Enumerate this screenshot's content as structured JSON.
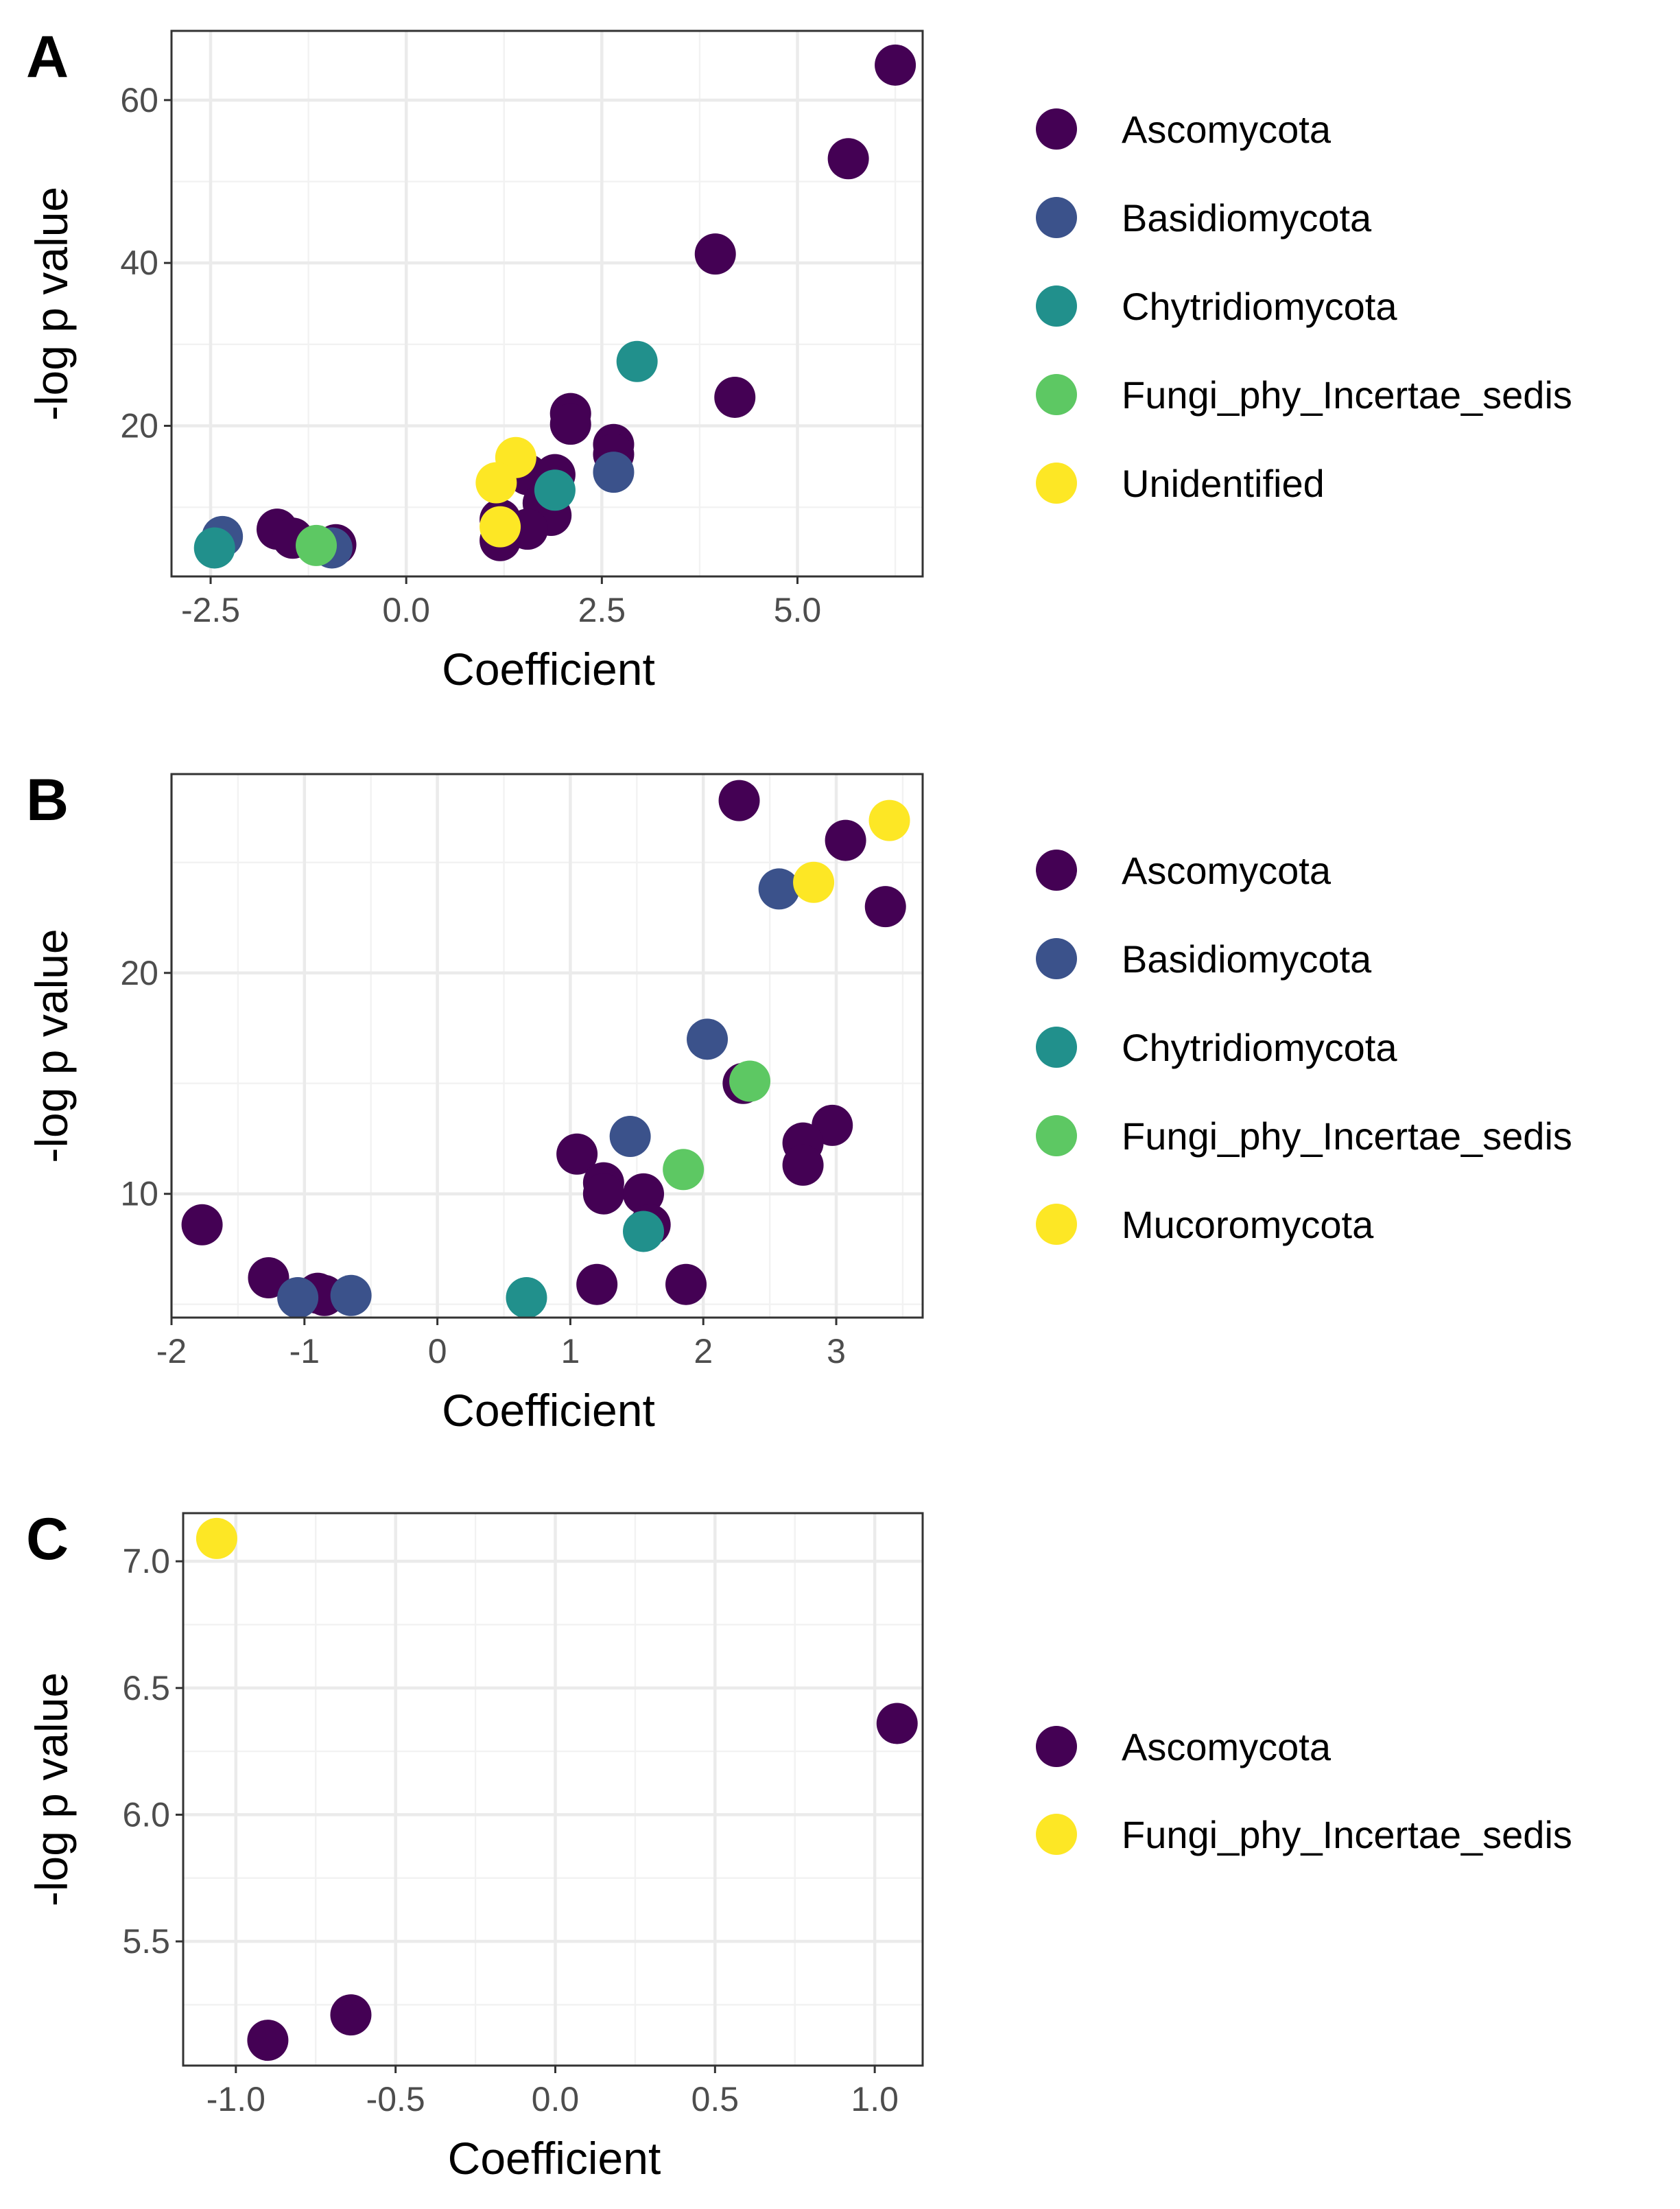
{
  "colors": {
    "Ascomycota": "#440154",
    "Basidiomycota": "#3b528b",
    "Chytridiomycota": "#21908c",
    "Fungi_phy_Incertae_sedis": "#5dc863",
    "Unidentified": "#fde725",
    "Mucoromycota": "#fde725",
    "C_Ascomycota": "#440154",
    "C_Fungi_phy_Incertae_sedis": "#fde725"
  },
  "chart_data": [
    {
      "panel": "A",
      "type": "scatter",
      "xlabel": "Coefficient",
      "ylabel": "-log p value",
      "xlim": [
        -3.0,
        6.6
      ],
      "ylim": [
        1.5,
        68.5
      ],
      "xticks": [
        -2.5,
        0.0,
        2.5,
        5.0
      ],
      "xtick_labels": [
        "-2.5",
        "0.0",
        "2.5",
        "5.0"
      ],
      "yticks": [
        20,
        40,
        60
      ],
      "ytick_labels": [
        "20",
        "40",
        "60"
      ],
      "legend": [
        "Ascomycota",
        "Basidiomycota",
        "Chytridiomycota",
        "Fungi_phy_Incertae_sedis",
        "Unidentified"
      ],
      "legend_color_keys": [
        "Ascomycota",
        "Basidiomycota",
        "Chytridiomycota",
        "Fungi_phy_Incertae_sedis",
        "Unidentified"
      ],
      "points": [
        {
          "x": 6.25,
          "y": 64.3,
          "group": "Ascomycota"
        },
        {
          "x": 5.65,
          "y": 52.8,
          "group": "Ascomycota"
        },
        {
          "x": 3.95,
          "y": 41.1,
          "group": "Ascomycota"
        },
        {
          "x": 4.2,
          "y": 23.5,
          "group": "Ascomycota"
        },
        {
          "x": 2.1,
          "y": 21.5,
          "group": "Ascomycota"
        },
        {
          "x": 2.1,
          "y": 20.2,
          "group": "Ascomycota"
        },
        {
          "x": 2.65,
          "y": 17.7,
          "group": "Ascomycota"
        },
        {
          "x": 2.65,
          "y": 16.5,
          "group": "Ascomycota"
        },
        {
          "x": 1.4,
          "y": 14.8,
          "group": "Ascomycota"
        },
        {
          "x": 1.55,
          "y": 14.0,
          "group": "Ascomycota"
        },
        {
          "x": 1.9,
          "y": 14.0,
          "group": "Ascomycota"
        },
        {
          "x": 1.75,
          "y": 10.5,
          "group": "Ascomycota"
        },
        {
          "x": 1.85,
          "y": 9.0,
          "group": "Ascomycota"
        },
        {
          "x": 1.55,
          "y": 7.3,
          "group": "Ascomycota"
        },
        {
          "x": 1.2,
          "y": 8.5,
          "group": "Ascomycota"
        },
        {
          "x": 1.2,
          "y": 5.9,
          "group": "Ascomycota"
        },
        {
          "x": -1.65,
          "y": 7.3,
          "group": "Ascomycota"
        },
        {
          "x": -1.45,
          "y": 6.2,
          "group": "Ascomycota"
        },
        {
          "x": -0.9,
          "y": 5.4,
          "group": "Ascomycota"
        },
        {
          "x": -2.35,
          "y": 6.4,
          "group": "Basidiomycota"
        },
        {
          "x": 2.65,
          "y": 14.3,
          "group": "Basidiomycota"
        },
        {
          "x": -0.95,
          "y": 5.0,
          "group": "Basidiomycota"
        },
        {
          "x": 2.95,
          "y": 27.9,
          "group": "Chytridiomycota"
        },
        {
          "x": -2.45,
          "y": 5.0,
          "group": "Chytridiomycota"
        },
        {
          "x": 1.9,
          "y": 12.1,
          "group": "Chytridiomycota"
        },
        {
          "x": -1.15,
          "y": 5.3,
          "group": "Fungi_phy_Incertae_sedis"
        },
        {
          "x": 1.4,
          "y": 16.1,
          "group": "Unidentified"
        },
        {
          "x": 1.15,
          "y": 13.0,
          "group": "Unidentified"
        },
        {
          "x": 1.2,
          "y": 7.6,
          "group": "Unidentified"
        }
      ]
    },
    {
      "panel": "B",
      "type": "scatter",
      "xlabel": "Coefficient",
      "ylabel": "-log p value",
      "xlim": [
        -2.0,
        3.65
      ],
      "ylim": [
        4.4,
        29.0
      ],
      "xticks": [
        -2,
        -1,
        0,
        1,
        2,
        3
      ],
      "xtick_labels": [
        "-2",
        "-1",
        "0",
        "1",
        "2",
        "3"
      ],
      "yticks": [
        10,
        20
      ],
      "ytick_labels": [
        "10",
        "20"
      ],
      "legend": [
        "Ascomycota",
        "Basidiomycota",
        "Chytridiomycota",
        "Fungi_phy_Incertae_sedis",
        "Mucoromycota"
      ],
      "legend_color_keys": [
        "Ascomycota",
        "Basidiomycota",
        "Chytridiomycota",
        "Fungi_phy_Incertae_sedis",
        "Mucoromycota"
      ],
      "points": [
        {
          "x": 2.27,
          "y": 27.8,
          "group": "Ascomycota"
        },
        {
          "x": 3.07,
          "y": 26.0,
          "group": "Ascomycota"
        },
        {
          "x": 3.37,
          "y": 23.0,
          "group": "Ascomycota"
        },
        {
          "x": 2.3,
          "y": 15.0,
          "group": "Ascomycota"
        },
        {
          "x": 2.97,
          "y": 13.1,
          "group": "Ascomycota"
        },
        {
          "x": 2.75,
          "y": 12.3,
          "group": "Ascomycota"
        },
        {
          "x": 2.75,
          "y": 11.3,
          "group": "Ascomycota"
        },
        {
          "x": 1.05,
          "y": 11.8,
          "group": "Ascomycota"
        },
        {
          "x": 1.25,
          "y": 10.5,
          "group": "Ascomycota"
        },
        {
          "x": 1.25,
          "y": 10.0,
          "group": "Ascomycota"
        },
        {
          "x": 1.55,
          "y": 10.0,
          "group": "Ascomycota"
        },
        {
          "x": 1.6,
          "y": 8.6,
          "group": "Ascomycota"
        },
        {
          "x": -1.77,
          "y": 8.6,
          "group": "Ascomycota"
        },
        {
          "x": -1.27,
          "y": 6.2,
          "group": "Ascomycota"
        },
        {
          "x": -0.9,
          "y": 5.5,
          "group": "Ascomycota"
        },
        {
          "x": -0.85,
          "y": 5.4,
          "group": "Ascomycota"
        },
        {
          "x": 1.2,
          "y": 5.9,
          "group": "Ascomycota"
        },
        {
          "x": 1.87,
          "y": 5.9,
          "group": "Ascomycota"
        },
        {
          "x": 2.57,
          "y": 23.8,
          "group": "Basidiomycota"
        },
        {
          "x": 2.03,
          "y": 17.0,
          "group": "Basidiomycota"
        },
        {
          "x": 1.45,
          "y": 12.6,
          "group": "Basidiomycota"
        },
        {
          "x": -1.05,
          "y": 5.3,
          "group": "Basidiomycota"
        },
        {
          "x": -0.65,
          "y": 5.4,
          "group": "Basidiomycota"
        },
        {
          "x": 1.55,
          "y": 8.3,
          "group": "Chytridiomycota"
        },
        {
          "x": 0.67,
          "y": 5.3,
          "group": "Chytridiomycota"
        },
        {
          "x": 2.35,
          "y": 15.1,
          "group": "Fungi_phy_Incertae_sedis"
        },
        {
          "x": 1.85,
          "y": 11.1,
          "group": "Fungi_phy_Incertae_sedis"
        },
        {
          "x": 3.4,
          "y": 26.9,
          "group": "Mucoromycota"
        },
        {
          "x": 2.83,
          "y": 24.1,
          "group": "Mucoromycota"
        }
      ]
    },
    {
      "panel": "C",
      "type": "scatter",
      "xlabel": "Coefficient",
      "ylabel": "-log p value",
      "xlim": [
        -1.165,
        1.15
      ],
      "ylim": [
        5.01,
        7.19
      ],
      "xticks": [
        -1.0,
        -0.5,
        0.0,
        0.5,
        1.0
      ],
      "xtick_labels": [
        "-1.0",
        "-0.5",
        "0.0",
        "0.5",
        "1.0"
      ],
      "yticks": [
        5.5,
        6.0,
        6.5,
        7.0
      ],
      "ytick_labels": [
        "5.5",
        "6.0",
        "6.5",
        "7.0"
      ],
      "legend": [
        "Ascomycota",
        "Fungi_phy_Incertae_sedis"
      ],
      "legend_color_keys": [
        "C_Ascomycota",
        "C_Fungi_phy_Incertae_sedis"
      ],
      "points": [
        {
          "x": -1.06,
          "y": 7.09,
          "group": "C_Fungi_phy_Incertae_sedis"
        },
        {
          "x": 1.07,
          "y": 6.36,
          "group": "C_Ascomycota"
        },
        {
          "x": -0.9,
          "y": 5.11,
          "group": "C_Ascomycota"
        },
        {
          "x": -0.64,
          "y": 5.21,
          "group": "C_Ascomycota"
        }
      ]
    }
  ],
  "panel_letters": [
    "A",
    "B",
    "C"
  ]
}
